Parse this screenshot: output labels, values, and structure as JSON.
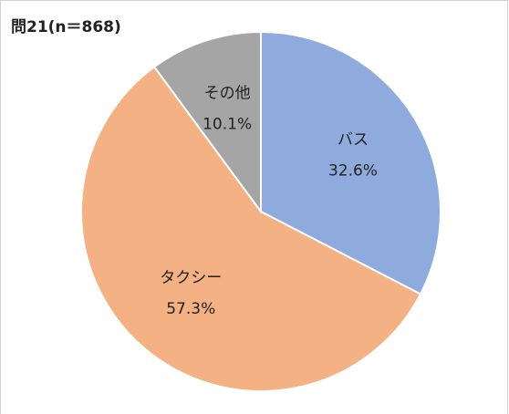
{
  "chart_data": {
    "type": "pie",
    "title": "問21(n＝868)",
    "categories": [
      "バス",
      "タクシー",
      "その他"
    ],
    "values": [
      32.6,
      57.3,
      10.1
    ],
    "value_labels": [
      "32.6%",
      "57.3%",
      "10.1%"
    ],
    "colors": [
      "#8faadc",
      "#f4b183",
      "#a5a5a5"
    ]
  }
}
